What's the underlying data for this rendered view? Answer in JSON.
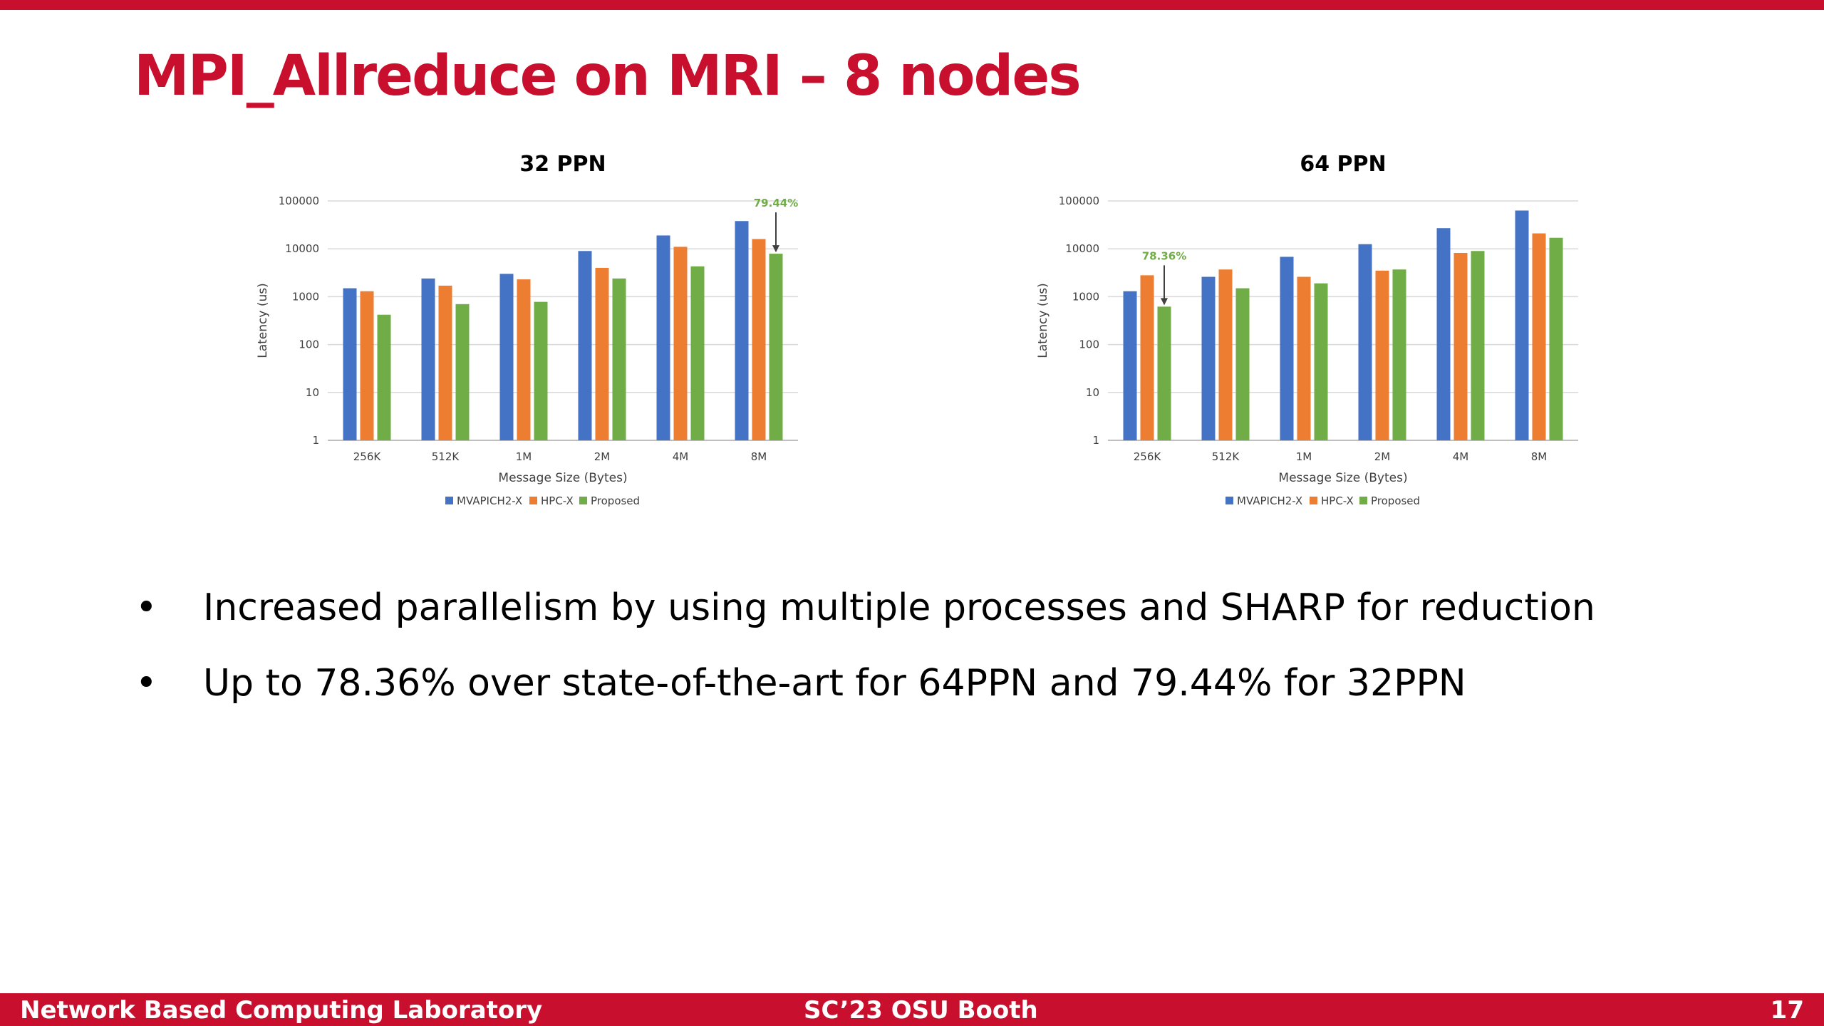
{
  "slide": {
    "title": "MPI_Allreduce on MRI – 8 nodes",
    "accent_color": "#c8102e"
  },
  "chart_data": [
    {
      "type": "bar",
      "title": "32 PPN",
      "xlabel": "Message Size (Bytes)",
      "ylabel": "Latency (us)",
      "yscale": "log",
      "ylim": [
        1,
        100000
      ],
      "yticks": [
        "1",
        "10",
        "100",
        "1000",
        "10000",
        "100000"
      ],
      "categories": [
        "256K",
        "512K",
        "1M",
        "2M",
        "4M",
        "8M"
      ],
      "series": [
        {
          "name": "MVAPICH2-X",
          "color": "#4472c4",
          "values": [
            1500,
            2400,
            3000,
            9000,
            19000,
            38000
          ]
        },
        {
          "name": "HPC-X",
          "color": "#ed7d31",
          "values": [
            1300,
            1700,
            2300,
            4000,
            11000,
            16000
          ]
        },
        {
          "name": "Proposed",
          "color": "#70ad47",
          "values": [
            420,
            700,
            780,
            2400,
            4300,
            7900
          ]
        }
      ],
      "grid": true,
      "legend": "bottom",
      "annotation": {
        "text": "79.44%",
        "category": "8M",
        "series": "Proposed",
        "color": "#70ad47"
      }
    },
    {
      "type": "bar",
      "title": "64 PPN",
      "xlabel": "Message Size (Bytes)",
      "ylabel": "Latency (us)",
      "yscale": "log",
      "ylim": [
        1,
        100000
      ],
      "yticks": [
        "1",
        "10",
        "100",
        "1000",
        "10000",
        "100000"
      ],
      "categories": [
        "256K",
        "512K",
        "1M",
        "2M",
        "4M",
        "8M"
      ],
      "series": [
        {
          "name": "MVAPICH2-X",
          "color": "#4472c4",
          "values": [
            1300,
            2600,
            6800,
            12500,
            27000,
            63000
          ]
        },
        {
          "name": "HPC-X",
          "color": "#ed7d31",
          "values": [
            2800,
            3700,
            2600,
            3500,
            8200,
            21000
          ]
        },
        {
          "name": "Proposed",
          "color": "#70ad47",
          "values": [
            620,
            1500,
            1900,
            3700,
            9000,
            17000
          ]
        }
      ],
      "grid": true,
      "legend": "bottom",
      "annotation": {
        "text": "78.36%",
        "category": "256K",
        "series": "Proposed",
        "color": "#70ad47"
      }
    }
  ],
  "bullets": [
    "Increased parallelism by using multiple processes and SHARP for reduction",
    "Up to 78.36% over state-of-the-art for 64PPN and 79.44% for 32PPN"
  ],
  "bullet_symbol": "•",
  "footer": {
    "left": "Network Based Computing Laboratory",
    "center": "SC’23 OSU Booth",
    "page_number": "17"
  }
}
